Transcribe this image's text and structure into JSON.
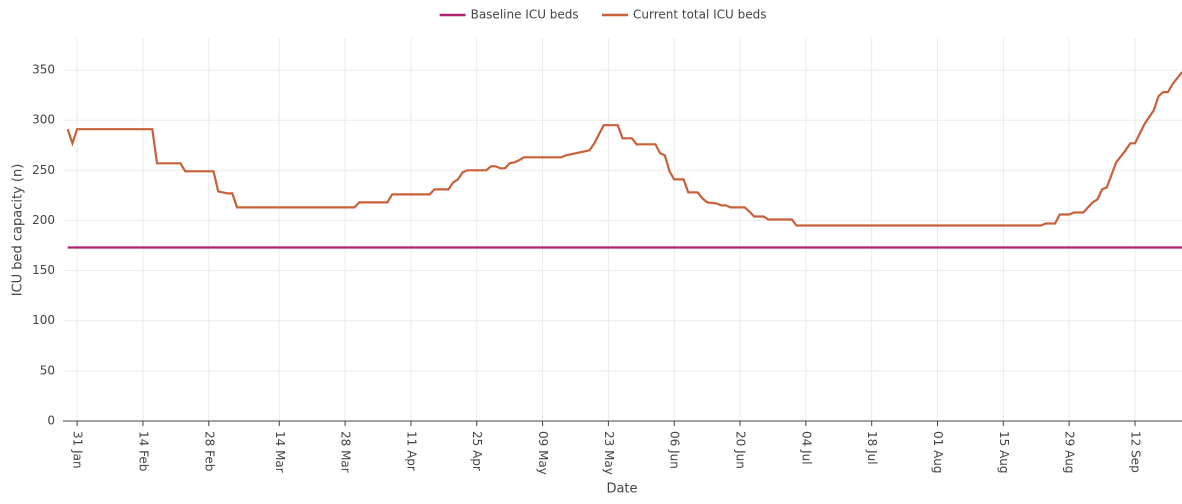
{
  "chart_data": {
    "type": "line",
    "xlabel": "Date",
    "ylabel": "ICU bed capacity (n)",
    "x": [
      "29 Jan",
      "30 Jan",
      "31 Jan",
      "16 Feb",
      "17 Feb",
      "22 Feb",
      "23 Feb",
      "29 Feb",
      "01 Mar",
      "03 Mar",
      "04 Mar",
      "05 Mar",
      "30 Mar",
      "31 Mar",
      "06 Apr",
      "07 Apr",
      "15 Apr",
      "16 Apr",
      "19 Apr",
      "20 Apr",
      "21 Apr",
      "22 Apr",
      "23 Apr",
      "27 Apr",
      "28 Apr",
      "29 Apr",
      "30 Apr",
      "01 May",
      "02 May",
      "03 May",
      "04 May",
      "05 May",
      "13 May",
      "14 May",
      "16 May",
      "18 May",
      "19 May",
      "20 May",
      "21 May",
      "22 May",
      "25 May",
      "26 May",
      "28 May",
      "29 May",
      "02 Jun",
      "03 Jun",
      "04 Jun",
      "05 Jun",
      "06 Jun",
      "08 Jun",
      "09 Jun",
      "11 Jun",
      "12 Jun",
      "13 Jun",
      "15 Jun",
      "16 Jun",
      "17 Jun",
      "18 Jun",
      "21 Jun",
      "22 Jun",
      "23 Jun",
      "25 Jun",
      "26 Jun",
      "01 Jul",
      "02 Jul",
      "23 Aug",
      "24 Aug",
      "26 Aug",
      "27 Aug",
      "29 Aug",
      "30 Aug",
      "01 Sep",
      "02 Sep",
      "03 Sep",
      "04 Sep",
      "05 Sep",
      "06 Sep",
      "08 Sep",
      "10 Sep",
      "11 Sep",
      "12 Sep",
      "14 Sep",
      "16 Sep",
      "17 Sep",
      "18 Sep",
      "19 Sep",
      "20 Sep",
      "22 Sep"
    ],
    "series": [
      {
        "name": "Baseline ICU beds",
        "color": "#b0226f",
        "values": [
          173,
          173,
          173,
          173,
          173,
          173,
          173,
          173,
          173,
          173,
          173,
          173,
          173,
          173,
          173,
          173,
          173,
          173,
          173,
          173,
          173,
          173,
          173,
          173,
          173,
          173,
          173,
          173,
          173,
          173,
          173,
          173,
          173,
          173,
          173,
          173,
          173,
          173,
          173,
          173,
          173,
          173,
          173,
          173,
          173,
          173,
          173,
          173,
          173,
          173,
          173,
          173,
          173,
          173,
          173,
          173,
          173,
          173,
          173,
          173,
          173,
          173,
          173,
          173,
          173,
          173,
          173,
          173,
          173,
          173,
          173,
          173,
          173,
          173,
          173,
          173,
          173,
          173,
          173,
          173,
          173,
          173,
          173,
          173,
          173,
          173,
          173,
          173
        ]
      },
      {
        "name": "Current total ICU beds",
        "color": "#c8603a",
        "values": [
          291,
          277,
          291,
          291,
          257,
          257,
          249,
          249,
          229,
          227,
          227,
          213,
          213,
          218,
          218,
          226,
          226,
          231,
          231,
          238,
          241,
          248,
          250,
          250,
          254,
          254,
          252,
          252,
          257,
          258,
          260,
          263,
          263,
          265,
          267,
          269,
          270,
          277,
          286,
          295,
          295,
          282,
          282,
          276,
          276,
          267,
          265,
          249,
          241,
          241,
          228,
          228,
          222,
          218,
          217,
          215,
          215,
          213,
          213,
          209,
          204,
          204,
          201,
          201,
          195,
          195,
          197,
          197,
          206,
          206,
          208,
          208,
          213,
          218,
          221,
          231,
          233,
          258,
          270,
          277,
          277,
          296,
          310,
          324,
          328,
          328,
          336,
          348
        ]
      }
    ],
    "xlim": [
      "28 Jan",
      "22 Sep"
    ],
    "xticks": [
      "31 Jan",
      "14 Feb",
      "28 Feb",
      "14 Mar",
      "28 Mar",
      "11 Apr",
      "25 Apr",
      "09 May",
      "23 May",
      "06 Jun",
      "20 Jun",
      "04 Jul",
      "18 Jul",
      "01 Aug",
      "15 Aug",
      "29 Aug",
      "12 Sep"
    ],
    "ylim": [
      0,
      382
    ],
    "yticks": [
      0,
      50,
      100,
      150,
      200,
      250,
      300,
      350
    ],
    "grid": true,
    "legend": "top"
  }
}
